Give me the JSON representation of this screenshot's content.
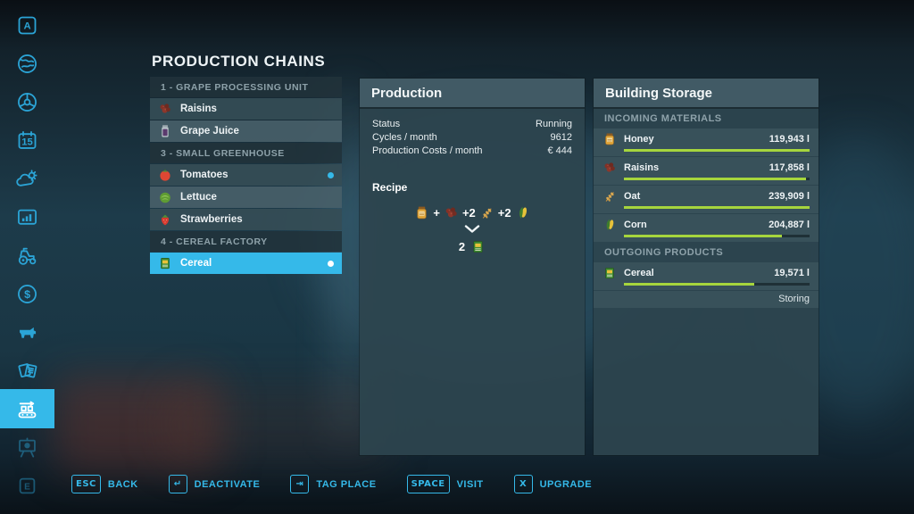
{
  "colors": {
    "accent": "#35b9e9",
    "bar_fill": "#a6d53d",
    "sidebar_icon": "#2ba4d6"
  },
  "page_title": "PRODUCTION CHAINS",
  "sidebar": {
    "key_top": "A",
    "key_bottom": "E",
    "calendar_day": "15",
    "dollar": "$",
    "items": [
      {
        "icon": "a-key-icon"
      },
      {
        "icon": "world-icon"
      },
      {
        "icon": "steering-wheel-icon"
      },
      {
        "icon": "calendar-icon"
      },
      {
        "icon": "weather-icon"
      },
      {
        "icon": "statistics-icon"
      },
      {
        "icon": "tractor-icon"
      },
      {
        "icon": "finances-icon"
      },
      {
        "icon": "animals-icon"
      },
      {
        "icon": "contracts-icon"
      },
      {
        "icon": "production-chains-icon"
      },
      {
        "icon": "construction-icon"
      },
      {
        "icon": "e-key-icon"
      }
    ]
  },
  "chains": {
    "sections": [
      {
        "header": "1 - GRAPE PROCESSING UNIT",
        "items": [
          {
            "label": "Raisins",
            "icon": "raisins"
          },
          {
            "label": "Grape Juice",
            "icon": "grape-juice"
          }
        ]
      },
      {
        "header": "3 - SMALL GREENHOUSE",
        "items": [
          {
            "label": "Tomatoes",
            "icon": "tomato",
            "active": true
          },
          {
            "label": "Lettuce",
            "icon": "lettuce"
          },
          {
            "label": "Strawberries",
            "icon": "strawberry"
          }
        ]
      },
      {
        "header": "4 - CEREAL FACTORY",
        "items": [
          {
            "label": "Cereal",
            "icon": "cereal",
            "selected": true,
            "active": true
          }
        ]
      }
    ]
  },
  "production": {
    "title": "Production",
    "rows": [
      {
        "label": "Status",
        "value": "Running"
      },
      {
        "label": "Cycles / month",
        "value": "9612"
      },
      {
        "label": "Production Costs / month",
        "value": "€ 444"
      }
    ],
    "recipe": {
      "label": "Recipe",
      "inputs": [
        {
          "icon": "honey",
          "prefix": ""
        },
        {
          "icon": "raisins",
          "prefix": "+"
        },
        {
          "icon": "oat",
          "prefix": "+2"
        },
        {
          "icon": "corn",
          "prefix": "+2"
        }
      ],
      "output": {
        "icon": "cereal",
        "qty": "2"
      }
    }
  },
  "storage": {
    "title": "Building Storage",
    "incoming_label": "INCOMING MATERIALS",
    "outgoing_label": "OUTGOING PRODUCTS",
    "incoming": [
      {
        "name": "Honey",
        "icon": "honey",
        "amount": "119,943 l",
        "fill": 1.0
      },
      {
        "name": "Raisins",
        "icon": "raisins",
        "amount": "117,858 l",
        "fill": 0.98
      },
      {
        "name": "Oat",
        "icon": "oat",
        "amount": "239,909 l",
        "fill": 1.0
      },
      {
        "name": "Corn",
        "icon": "corn",
        "amount": "204,887 l",
        "fill": 0.85
      }
    ],
    "outgoing": [
      {
        "name": "Cereal",
        "icon": "cereal",
        "amount": "19,571 l",
        "fill": 0.7,
        "status": "Storing"
      }
    ]
  },
  "toolbar": {
    "buttons": [
      {
        "key": "ESC",
        "label": "BACK"
      },
      {
        "key": "↵",
        "label": "DEACTIVATE"
      },
      {
        "key": "⇥",
        "label": "TAG PLACE"
      },
      {
        "key": "SPACE",
        "label": "VISIT"
      },
      {
        "key": "X",
        "label": "UPGRADE"
      }
    ]
  }
}
